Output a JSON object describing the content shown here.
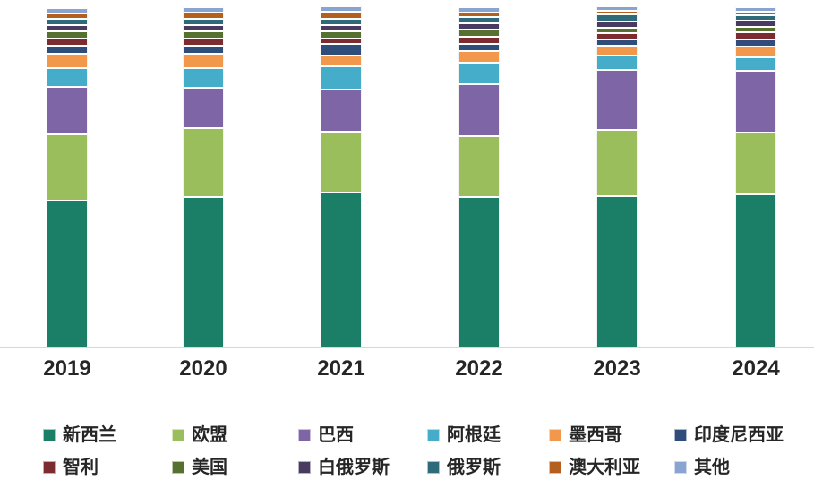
{
  "chart_data": {
    "type": "bar",
    "subtype": "stacked-vertical",
    "title": "",
    "xlabel": "",
    "ylabel": "",
    "y_axis_visible": false,
    "grid": false,
    "legend_position": "bottom",
    "legend_rows": 2,
    "categories": [
      "2019",
      "2020",
      "2021",
      "2022",
      "2023",
      "2024"
    ],
    "value_unit": "percent-share (estimated from bar heights, no y-axis shown)",
    "series": [
      {
        "name": "新西兰",
        "color": "#1a7f66",
        "values": [
          43.2,
          44.2,
          45.5,
          44.2,
          44.6,
          45.1
        ]
      },
      {
        "name": "欧盟",
        "color": "#9bbe5d",
        "values": [
          19.5,
          20.2,
          18.0,
          18.0,
          19.4,
          18.1
        ]
      },
      {
        "name": "巴西",
        "color": "#7d65a6",
        "values": [
          13.8,
          11.8,
          12.2,
          15.3,
          17.5,
          18.1
        ]
      },
      {
        "name": "阿根廷",
        "color": "#45adca",
        "values": [
          5.5,
          6.0,
          6.9,
          6.2,
          4.2,
          4.0
        ]
      },
      {
        "name": "墨西哥",
        "color": "#f1984c",
        "values": [
          4.4,
          4.2,
          3.2,
          3.5,
          2.9,
          3.2
        ]
      },
      {
        "name": "印度尼西亚",
        "color": "#2e4d7b",
        "values": [
          2.3,
          2.4,
          3.4,
          2.1,
          1.9,
          1.9
        ]
      },
      {
        "name": "智利",
        "color": "#7c2b2f",
        "values": [
          2.1,
          2.1,
          1.6,
          1.9,
          1.9,
          2.1
        ]
      },
      {
        "name": "美国",
        "color": "#567030",
        "values": [
          2.1,
          2.1,
          2.1,
          2.1,
          1.6,
          1.6
        ]
      },
      {
        "name": "白俄罗斯",
        "color": "#493a61",
        "values": [
          1.8,
          1.8,
          1.9,
          1.9,
          1.9,
          1.9
        ]
      },
      {
        "name": "俄罗斯",
        "color": "#2d6b7a",
        "values": [
          1.8,
          1.8,
          1.9,
          1.9,
          1.9,
          1.6
        ]
      },
      {
        "name": "澳大利亚",
        "color": "#b45f1d",
        "values": [
          1.8,
          1.8,
          1.9,
          1.3,
          1.1,
          1.1
        ]
      },
      {
        "name": "其他",
        "color": "#89a4d0",
        "values": [
          1.6,
          1.6,
          1.6,
          1.6,
          1.3,
          1.3
        ]
      }
    ]
  },
  "axis": {
    "baseline_color": "#d8d8d8",
    "tick_labels": [
      "2019",
      "2020",
      "2021",
      "2022",
      "2023",
      "2024"
    ]
  },
  "legend": {
    "row1": [
      "新西兰",
      "欧盟",
      "巴西",
      "阿根廷",
      "墨西哥",
      "印度尼西亚"
    ],
    "row2": [
      "智利",
      "美国",
      "白俄罗斯",
      "俄罗斯",
      "澳大利亚",
      "其他"
    ]
  }
}
